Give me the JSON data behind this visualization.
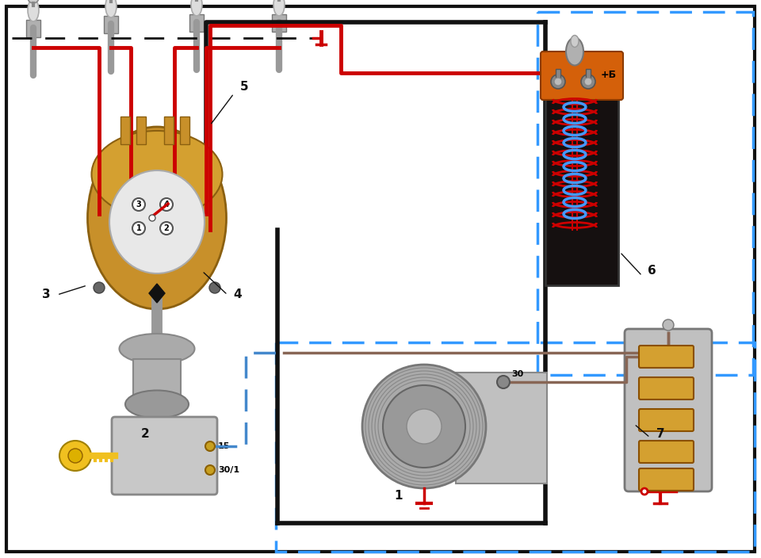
{
  "bg_color": "#ffffff",
  "red": "#cc0000",
  "black": "#111111",
  "orange": "#d4600a",
  "gold": "#c8902a",
  "gray": "#aaaaaa",
  "blue_wire": "#4488cc",
  "mauve_wire": "#996677",
  "lw_thick": 4.0,
  "lw_wire": 3.5,
  "lw_thin": 2.0,
  "font_label": 11,
  "font_small": 8,
  "labels": [
    [
      "1",
      503,
      625
    ],
    [
      "2",
      183,
      548
    ],
    [
      "3",
      58,
      372
    ],
    [
      "4",
      300,
      372
    ],
    [
      "5",
      308,
      110
    ],
    [
      "6",
      822,
      342
    ],
    [
      "7",
      833,
      548
    ]
  ]
}
